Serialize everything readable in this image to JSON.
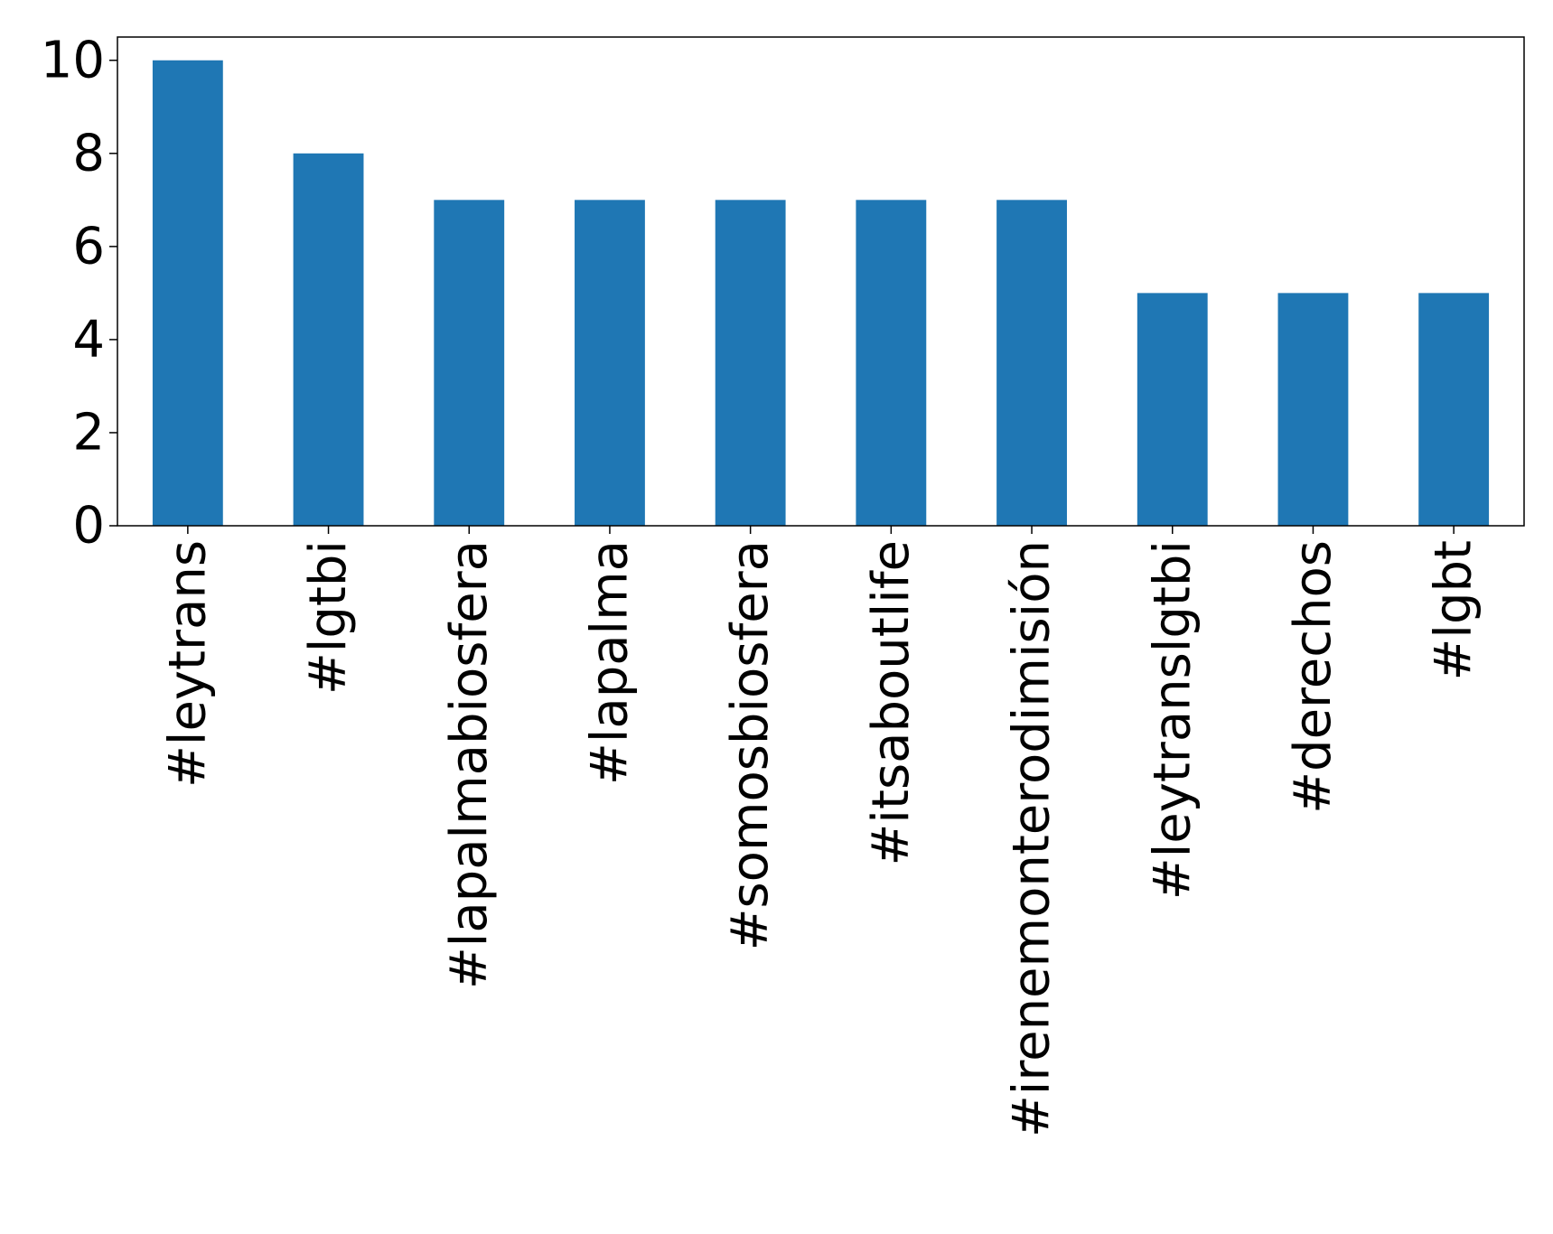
{
  "chart_data": {
    "type": "bar",
    "categories": [
      "#leytrans",
      "#lgtbi",
      "#lapalmabiosfera",
      "#lapalma",
      "#somosbiosfera",
      "#itsaboutlife",
      "#irenemonterodimisión",
      "#leytranslgtbi",
      "#derechos",
      "#lgbt"
    ],
    "values": [
      10,
      8,
      7,
      7,
      7,
      7,
      7,
      5,
      5,
      5
    ],
    "color": "#1f77b4",
    "ylim": [
      0,
      10.5
    ],
    "yticks": [
      0,
      2,
      4,
      6,
      8,
      10
    ],
    "grid": false
  }
}
